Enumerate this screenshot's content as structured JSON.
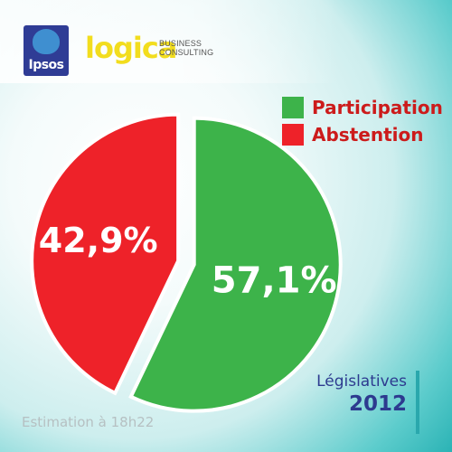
{
  "logos": {
    "ipsos": "Ipsos",
    "logica": "logica",
    "logica_sub_1": "BUSINESS",
    "logica_sub_2": "CONSULTING"
  },
  "colors": {
    "participation": "#3db34a",
    "abstention": "#ee2229",
    "accent": "#2d3a8f"
  },
  "chart_data": {
    "type": "pie",
    "slices": [
      {
        "name": "Participation",
        "value": 57.1,
        "label": "57,1%",
        "color": "#3db34a"
      },
      {
        "name": "Abstention",
        "value": 42.9,
        "label": "42,9%",
        "color": "#ee2229"
      }
    ],
    "legend_position": "top-right"
  },
  "badge": {
    "line1": "Législatives",
    "line2": "2012"
  },
  "footer": "Estimation à 18h22"
}
